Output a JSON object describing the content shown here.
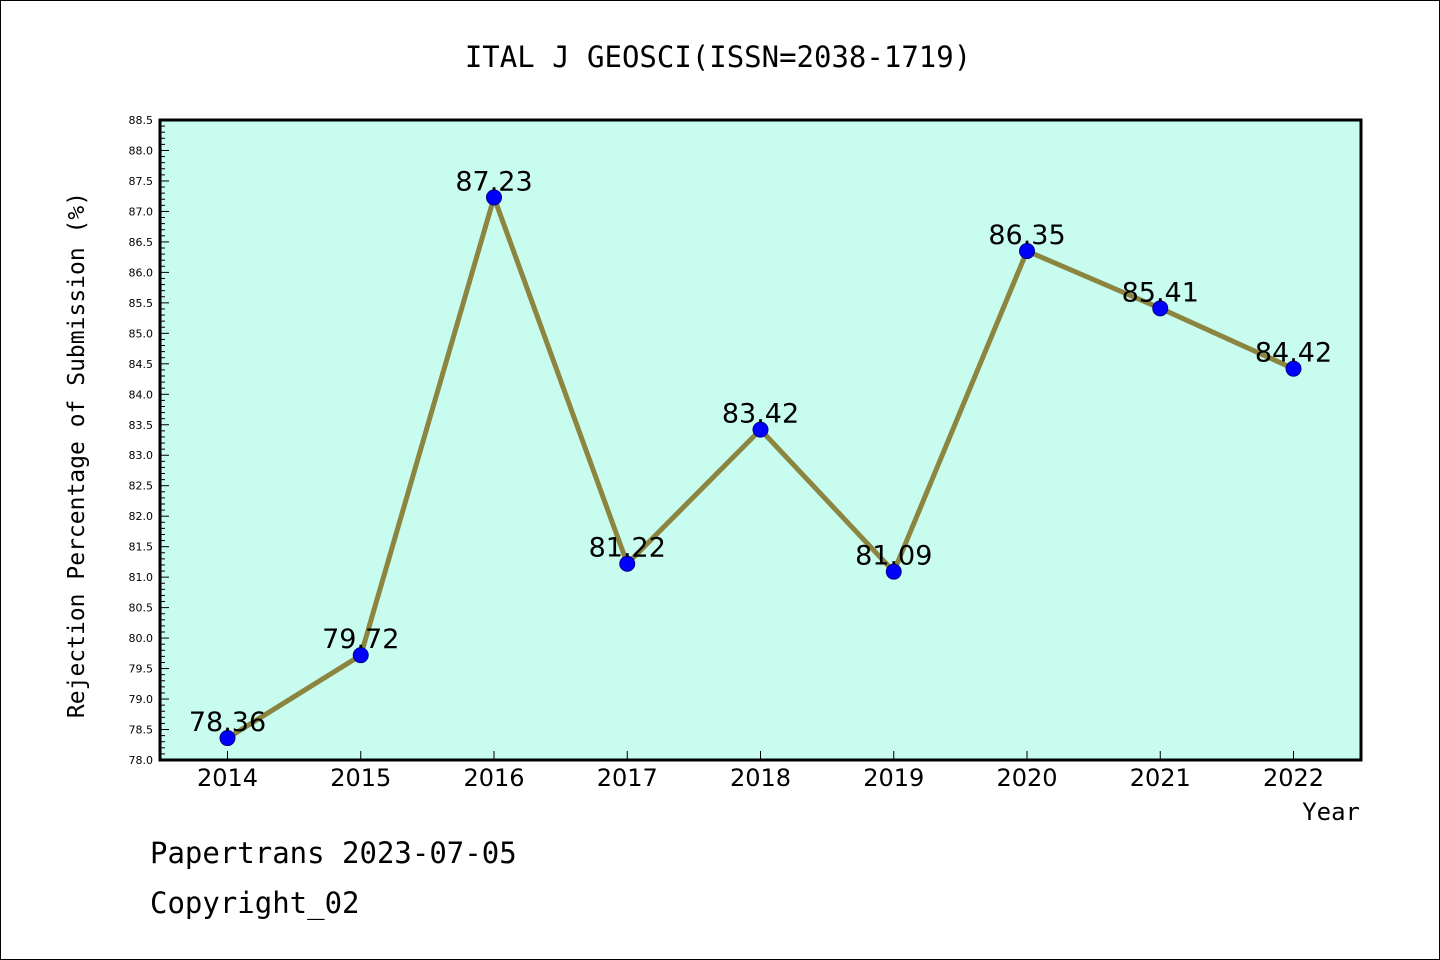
{
  "chart_data": {
    "type": "line",
    "title": "ITAL J GEOSCI(ISSN=2038-1719)",
    "xlabel": "Year",
    "ylabel": "Rejection Percentage of Submission (%)",
    "categories": [
      "2014",
      "2015",
      "2016",
      "2017",
      "2018",
      "2019",
      "2020",
      "2021",
      "2022"
    ],
    "values": [
      78.36,
      79.72,
      87.23,
      81.22,
      83.42,
      81.09,
      86.35,
      85.41,
      84.42
    ],
    "data_labels": [
      "78.36",
      "79.72",
      "87.23",
      "81.22",
      "83.42",
      "81.09",
      "86.35",
      "85.41",
      "84.42"
    ],
    "ylim": [
      78.0,
      88.5
    ],
    "yticks": [
      "78.0",
      "78.5",
      "79.0",
      "79.5",
      "80.0",
      "80.5",
      "81.0",
      "81.5",
      "82.0",
      "82.5",
      "83.0",
      "83.5",
      "84.0",
      "84.5",
      "85.0",
      "85.5",
      "86.0",
      "86.5",
      "87.0",
      "87.5",
      "88.0",
      "88.5"
    ],
    "grid": false,
    "colors": {
      "plot_background": "#c8fcee",
      "line": "#8b8540",
      "marker": "#0000ff"
    }
  },
  "footer": {
    "line1": "Papertrans 2023-07-05",
    "line2": "Copyright_02"
  }
}
